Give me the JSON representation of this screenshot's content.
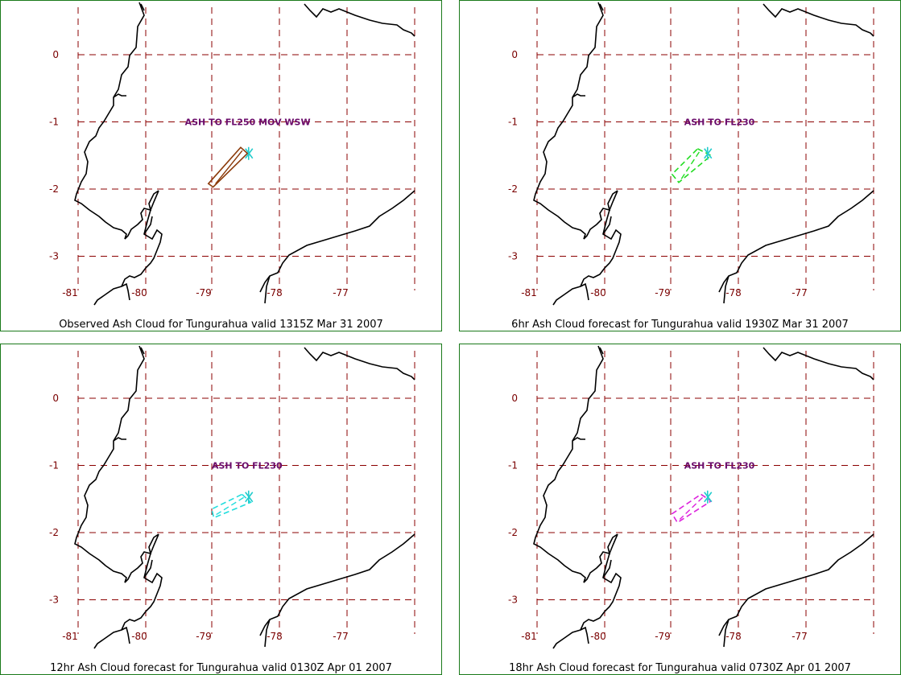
{
  "map": {
    "latitudes": [
      0,
      -1,
      -2,
      -3
    ],
    "longitudes": [
      -81,
      -80,
      -79,
      -78,
      -77
    ],
    "grid_color": "#8b0000",
    "label_color": "#7a0000",
    "coast_color": "#000000",
    "ash_label_color": "#6a0a6a"
  },
  "panels": [
    {
      "caption": "Observed Ash Cloud for Tungurahua valid 1315Z Mar 31 2007",
      "ash_label": "ASH TO FL250 MOV WSW",
      "ash_label_pos": {
        "lon": -79.4,
        "lat": -1.0
      },
      "cloud_color": "#8b3a0a",
      "cloud_polygon": [
        [
          -78.57,
          -1.38
        ],
        [
          -78.47,
          -1.47
        ],
        [
          -78.98,
          -1.97
        ],
        [
          -79.05,
          -1.92
        ]
      ],
      "cloud_style": "solid"
    },
    {
      "caption": "6hr Ash Cloud forecast for Tungurahua valid 1930Z Mar 31 2007",
      "ash_label": "ASH TO FL230",
      "ash_label_pos": {
        "lon": -78.8,
        "lat": -1.0
      },
      "cloud_color": "#22dd22",
      "cloud_polygon": [
        [
          -78.6,
          -1.4
        ],
        [
          -78.4,
          -1.5
        ],
        [
          -78.88,
          -1.9
        ],
        [
          -78.98,
          -1.78
        ]
      ],
      "cloud_style": "dashed"
    },
    {
      "caption": "12hr Ash Cloud forecast for Tungurahua valid 0130Z Apr 01 2007",
      "ash_label": "ASH TO FL230",
      "ash_label_pos": {
        "lon": -79.0,
        "lat": -1.0
      },
      "cloud_color": "#22dddd",
      "cloud_polygon": [
        [
          -78.55,
          -1.43
        ],
        [
          -78.42,
          -1.55
        ],
        [
          -78.97,
          -1.78
        ],
        [
          -79.0,
          -1.65
        ]
      ],
      "cloud_style": "dashed"
    },
    {
      "caption": "18hr Ash Cloud forecast for Tungurahua valid 0730Z Apr 01 2007",
      "ash_label": "ASH TO FL230",
      "ash_label_pos": {
        "lon": -78.8,
        "lat": -1.0
      },
      "cloud_color": "#dd22dd",
      "cloud_polygon": [
        [
          -78.55,
          -1.43
        ],
        [
          -78.4,
          -1.53
        ],
        [
          -78.9,
          -1.85
        ],
        [
          -78.98,
          -1.72
        ]
      ],
      "cloud_style": "dashed"
    }
  ],
  "volcano_marker_color": "#22cccc"
}
